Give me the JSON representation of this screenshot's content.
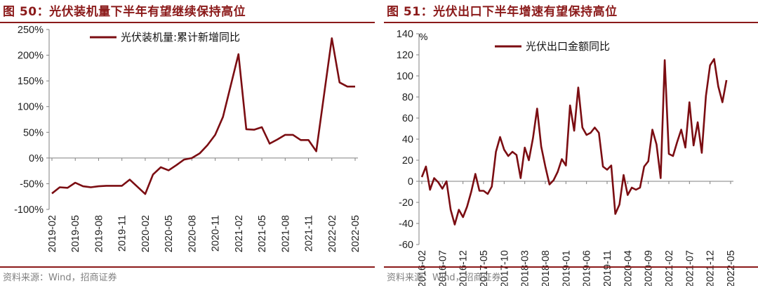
{
  "charts": [
    {
      "figure_title": "图 50：光伏装机量下半年有望继续保持高位",
      "source": "资料来源：Wind，招商证券"
    },
    {
      "figure_title": "图 51：光伏出口下半年增速有望保持高位",
      "source": "资料来源：Wind，招商证券"
    }
  ],
  "colors": {
    "line": "#7b0d12",
    "accent": "#8b1a1a",
    "axis": "#808080",
    "source": "#7f7f7f"
  },
  "chart_data": [
    {
      "type": "line",
      "title": "",
      "xlabel": "",
      "ylabel": "",
      "ylim": [
        -100,
        250
      ],
      "y_ticks": [
        -100,
        -50,
        0,
        50,
        100,
        150,
        200,
        250
      ],
      "y_format": "percent",
      "x_tick_labels": [
        "2019-02",
        "2019-05",
        "2019-08",
        "2019-11",
        "2020-02",
        "2020-05",
        "2020-08",
        "2020-11",
        "2021-02",
        "2021-05",
        "2021-08",
        "2021-11",
        "2022-02",
        "2022-05"
      ],
      "legend_position": "top-center",
      "grid": false,
      "series": [
        {
          "name": "光伏装机量:累计新增同比",
          "x": [
            "2019-02",
            "2019-03",
            "2019-04",
            "2019-05",
            "2019-06",
            "2019-07",
            "2019-08",
            "2019-09",
            "2019-10",
            "2019-11",
            "2019-12",
            "2020-02",
            "2020-03",
            "2020-04",
            "2020-05",
            "2020-06",
            "2020-07",
            "2020-08",
            "2020-09",
            "2020-10",
            "2020-11",
            "2020-12",
            "2021-02",
            "2021-03",
            "2021-04",
            "2021-05",
            "2021-06",
            "2021-07",
            "2021-08",
            "2021-09",
            "2021-10",
            "2021-11",
            "2021-12",
            "2022-02",
            "2022-03",
            "2022-04",
            "2022-05"
          ],
          "values": [
            -69,
            -57,
            -58,
            -48,
            -55,
            -57,
            -55,
            -54,
            -54,
            -54,
            -42,
            -70,
            -32,
            -18,
            -24,
            -14,
            -3,
            0,
            9,
            25,
            45,
            80,
            202,
            56,
            55,
            60,
            28,
            36,
            45,
            45,
            35,
            35,
            13,
            233,
            147,
            139,
            139
          ]
        }
      ]
    },
    {
      "type": "line",
      "title": "",
      "xlabel": "",
      "ylabel": "%",
      "ylim": [
        -60,
        140
      ],
      "y_ticks": [
        -60,
        -40,
        -20,
        0,
        20,
        40,
        60,
        80,
        100,
        120,
        140
      ],
      "y_format": "number",
      "x_tick_labels": [
        "2016-02",
        "2016-07",
        "2016-12",
        "2017-05",
        "2017-10",
        "2018-03",
        "2018-08",
        "2019-01",
        "2019-06",
        "2019-11",
        "2020-04",
        "2020-09",
        "2021-02",
        "2021-07",
        "2021-12",
        "2022-05"
      ],
      "legend_position": "top-left",
      "grid": false,
      "series": [
        {
          "name": "光伏出口金额同比",
          "x_start": "2016-02",
          "x_end": "2022-05",
          "values": [
            4,
            14,
            -8,
            3,
            -1,
            -7,
            0,
            -27,
            -41,
            -27,
            -34,
            -24,
            -10,
            7,
            -9,
            -9,
            -12,
            -5,
            28,
            42,
            30,
            24,
            28,
            25,
            3,
            32,
            20,
            41,
            69,
            33,
            14,
            -3,
            1,
            9,
            21,
            15,
            72,
            48,
            89,
            51,
            44,
            46,
            51,
            46,
            14,
            11,
            15,
            -31,
            -22,
            6,
            -13,
            -6,
            -8,
            -6,
            14,
            19,
            49,
            35,
            3,
            115,
            26,
            24,
            37,
            49,
            32,
            75,
            34,
            56,
            27,
            81,
            110,
            116,
            90,
            75,
            96
          ]
        }
      ]
    }
  ]
}
